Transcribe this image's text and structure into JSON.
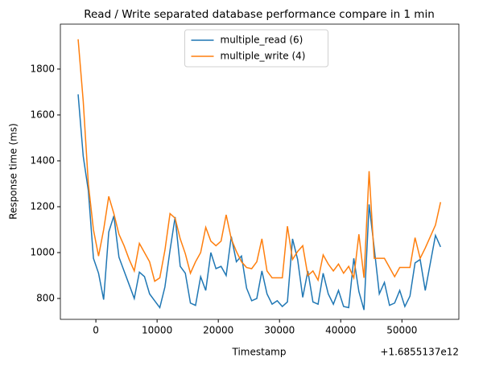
{
  "chart_data": {
    "type": "line",
    "title": "Read / Write separated database performance compare in 1 min",
    "xlabel": "Timestamp",
    "ylabel": "Response time (ms)",
    "x_offset_label": "+1.6855137e12",
    "x": [
      -2900,
      -2066,
      -1232,
      -398,
      436,
      1270,
      2104,
      2938,
      3772,
      4606,
      5440,
      6274,
      7108,
      7942,
      8776,
      9610,
      10444,
      11278,
      12112,
      12946,
      13780,
      14614,
      15448,
      16282,
      17116,
      17950,
      18784,
      19618,
      20452,
      21286,
      22120,
      22954,
      23788,
      24622,
      25456,
      26290,
      27124,
      27958,
      28792,
      29626,
      30460,
      31294,
      32128,
      32962,
      33796,
      34630,
      35464,
      36298,
      37132,
      37966,
      38800,
      39634,
      40468,
      41302,
      42136,
      42970,
      43804,
      44638,
      45472,
      46306,
      47140,
      47974,
      48808,
      49642,
      50476,
      51310,
      52144,
      52978,
      53812,
      54646,
      55480,
      56314
    ],
    "series": [
      {
        "name": "multiple_read (6)",
        "color": "#1f77b4",
        "values": [
          1690,
          1420,
          1270,
          975,
          910,
          795,
          1090,
          1160,
          980,
          920,
          860,
          800,
          915,
          895,
          820,
          790,
          760,
          850,
          1010,
          1155,
          940,
          910,
          780,
          770,
          895,
          835,
          1000,
          930,
          940,
          900,
          1070,
          960,
          985,
          845,
          790,
          800,
          920,
          820,
          775,
          790,
          765,
          785,
          1060,
          970,
          805,
          920,
          785,
          775,
          910,
          820,
          775,
          835,
          765,
          760,
          975,
          830,
          750,
          1210,
          1020,
          820,
          870,
          770,
          780,
          835,
          765,
          810,
          955,
          970,
          835,
          955,
          1075,
          1025
        ]
      },
      {
        "name": "multiple_write (4)",
        "color": "#ff7f0e",
        "values": [
          1930,
          1660,
          1300,
          1100,
          985,
          1100,
          1245,
          1170,
          1080,
          1030,
          970,
          920,
          1040,
          1000,
          960,
          875,
          890,
          1010,
          1170,
          1150,
          1060,
          995,
          910,
          960,
          1000,
          1110,
          1050,
          1030,
          1050,
          1165,
          1060,
          1005,
          960,
          935,
          930,
          960,
          1060,
          920,
          890,
          890,
          890,
          1115,
          970,
          1005,
          1030,
          900,
          920,
          880,
          990,
          950,
          920,
          950,
          910,
          940,
          890,
          1080,
          890,
          1355,
          975,
          975,
          975,
          935,
          895,
          935,
          935,
          935,
          1065,
          975,
          1020,
          1070,
          1120,
          1220
        ]
      }
    ],
    "xlim": [
      -5800,
      59300
    ],
    "xticks": [
      0,
      10000,
      20000,
      30000,
      40000,
      50000
    ],
    "ylim": [
      709,
      1996
    ],
    "yticks": [
      800,
      1000,
      1200,
      1400,
      1600,
      1800
    ],
    "grid": false,
    "legend": "upper center"
  }
}
